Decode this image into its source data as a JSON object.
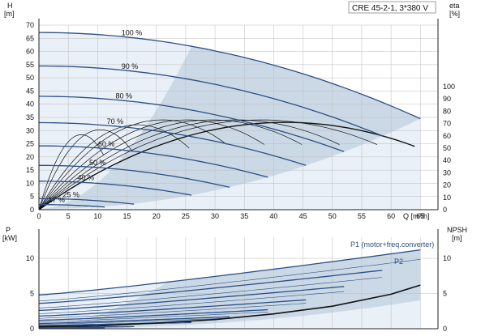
{
  "chart_data": [
    {
      "type": "line",
      "panel": "top",
      "title": "CRE 45-2-1, 3*380 V",
      "left_axis": {
        "label_line1": "H",
        "label_line2": "[m]",
        "ylim": [
          0,
          70
        ],
        "ticks": [
          "0",
          "5",
          "10",
          "15",
          "20",
          "25",
          "30",
          "35",
          "40",
          "45",
          "50",
          "55",
          "60",
          "65",
          "70"
        ]
      },
      "right_axis": {
        "label_line1": "eta",
        "label_line2": "[%]",
        "ylim": [
          0,
          100
        ],
        "ticks": [
          "0",
          "10",
          "20",
          "30",
          "40",
          "50",
          "60",
          "70",
          "80",
          "90",
          "100"
        ]
      },
      "x_axis": {
        "xlabel": "Q [m³/h]",
        "xlim": [
          0,
          68
        ],
        "ticks": [
          "0",
          "5",
          "10",
          "15",
          "20",
          "25",
          "30",
          "35",
          "40",
          "45",
          "50",
          "55",
          "60",
          "65"
        ]
      },
      "grid": true,
      "speed_curves": [
        {
          "name": "100 %",
          "shutoff_head": 67.2,
          "max_flow": 65,
          "end_head": 34.5
        },
        {
          "name": "90 %",
          "shutoff_head": 54.5,
          "max_flow": 58.5,
          "end_head": 28
        },
        {
          "name": "80 %",
          "shutoff_head": 43.0,
          "max_flow": 52,
          "end_head": 22
        },
        {
          "name": "70 %",
          "shutoff_head": 33.0,
          "max_flow": 45.5,
          "end_head": 16.8
        },
        {
          "name": "60 %",
          "shutoff_head": 24.2,
          "max_flow": 39,
          "end_head": 12.3
        },
        {
          "name": "50 %",
          "shutoff_head": 16.8,
          "max_flow": 32.5,
          "end_head": 8.5
        },
        {
          "name": "40 %",
          "shutoff_head": 10.8,
          "max_flow": 26,
          "end_head": 5.5
        },
        {
          "name": "25 %",
          "shutoff_head": 4.2,
          "max_flow": 16.2,
          "end_head": 2.1
        },
        {
          "name": "17 %",
          "shutoff_head": 1.95,
          "max_flow": 11.2,
          "end_head": 1.0
        }
      ],
      "efficiency_curves": {
        "count": 9,
        "peak_eta_percent": 73,
        "peak_flow_at_100": 42,
        "max_flow_at_100": 64
      }
    },
    {
      "type": "line",
      "panel": "bottom",
      "left_axis": {
        "label_line1": "P",
        "label_line2": "[kW]",
        "ylim": [
          0,
          13
        ],
        "ticks": [
          "0",
          "5",
          "10"
        ]
      },
      "right_axis": {
        "label_line1": "NPSH",
        "label_line2": "[m]",
        "ylim": [
          0,
          13
        ],
        "ticks": [
          "0",
          "5",
          "10"
        ]
      },
      "x_axis": {
        "xlim": [
          0,
          68
        ]
      },
      "grid": true,
      "annotations": [
        "P1 (motor+freq.converter)",
        "P2"
      ],
      "p1_curves": [
        {
          "speed": "100 %",
          "p_at_zero": 4.8,
          "max_flow": 65,
          "p_at_max": 11.2
        },
        {
          "speed": "90 %",
          "p_at_zero": 3.6,
          "max_flow": 58.5,
          "p_at_max": 8.3
        },
        {
          "speed": "80 %",
          "p_at_zero": 2.6,
          "max_flow": 52,
          "p_at_max": 6.0
        },
        {
          "speed": "70 %",
          "p_at_zero": 1.8,
          "max_flow": 45.5,
          "p_at_max": 4.1
        },
        {
          "speed": "60 %",
          "p_at_zero": 1.2,
          "max_flow": 39,
          "p_at_max": 2.7
        },
        {
          "speed": "50 %",
          "p_at_zero": 0.75,
          "max_flow": 32.5,
          "p_at_max": 1.7
        },
        {
          "speed": "40 %",
          "p_at_zero": 0.45,
          "max_flow": 26,
          "p_at_max": 0.95
        },
        {
          "speed": "25 %",
          "p_at_zero": 0.15,
          "max_flow": 16.2,
          "p_at_max": 0.3
        },
        {
          "speed": "17 %",
          "p_at_zero": 0.08,
          "max_flow": 11.2,
          "p_at_max": 0.15
        }
      ],
      "npsh_curve": {
        "x": [
          0,
          10,
          20,
          30,
          40,
          50,
          60,
          65
        ],
        "y": [
          0.3,
          0.4,
          0.8,
          1.3,
          2.1,
          3.2,
          4.9,
          6.2
        ]
      }
    }
  ],
  "colors": {
    "curve": "#2c4f86",
    "fill": "#cbd9e6",
    "fill_light": "#e9f0f7",
    "grid": "#bdbdbd",
    "axis": "#222222",
    "eta": "#111111"
  }
}
